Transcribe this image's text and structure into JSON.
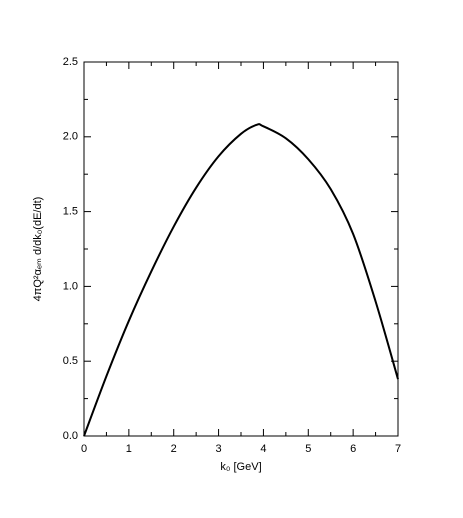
{
  "chart_data": {
    "type": "line",
    "xlabel": "k₀ [GeV]",
    "ylabel": "4πQ²αₑₘ d/dk₀(dE/dt)",
    "x": [
      0,
      0.5,
      1,
      1.5,
      2,
      2.5,
      3,
      3.5,
      3.85,
      4,
      4.5,
      5,
      5.5,
      6,
      6.5,
      7
    ],
    "series": [
      {
        "color": "#000000",
        "values": [
          0,
          0.4,
          0.77,
          1.1,
          1.4,
          1.66,
          1.87,
          2.02,
          2.08,
          2.07,
          1.99,
          1.85,
          1.65,
          1.35,
          0.9,
          0.38
        ]
      }
    ],
    "xlim": [
      0,
      7
    ],
    "xticks": [
      0,
      1,
      2,
      3,
      4,
      5,
      6,
      7
    ],
    "ylim": [
      0,
      2.5
    ],
    "yticks": [
      {
        "value": 0,
        "label": "0.0"
      },
      0.5,
      {
        "value": 1,
        "label": "1.0"
      },
      1.5,
      {
        "value": 2,
        "label": "2.0"
      },
      2.5
    ],
    "grid": false
  }
}
